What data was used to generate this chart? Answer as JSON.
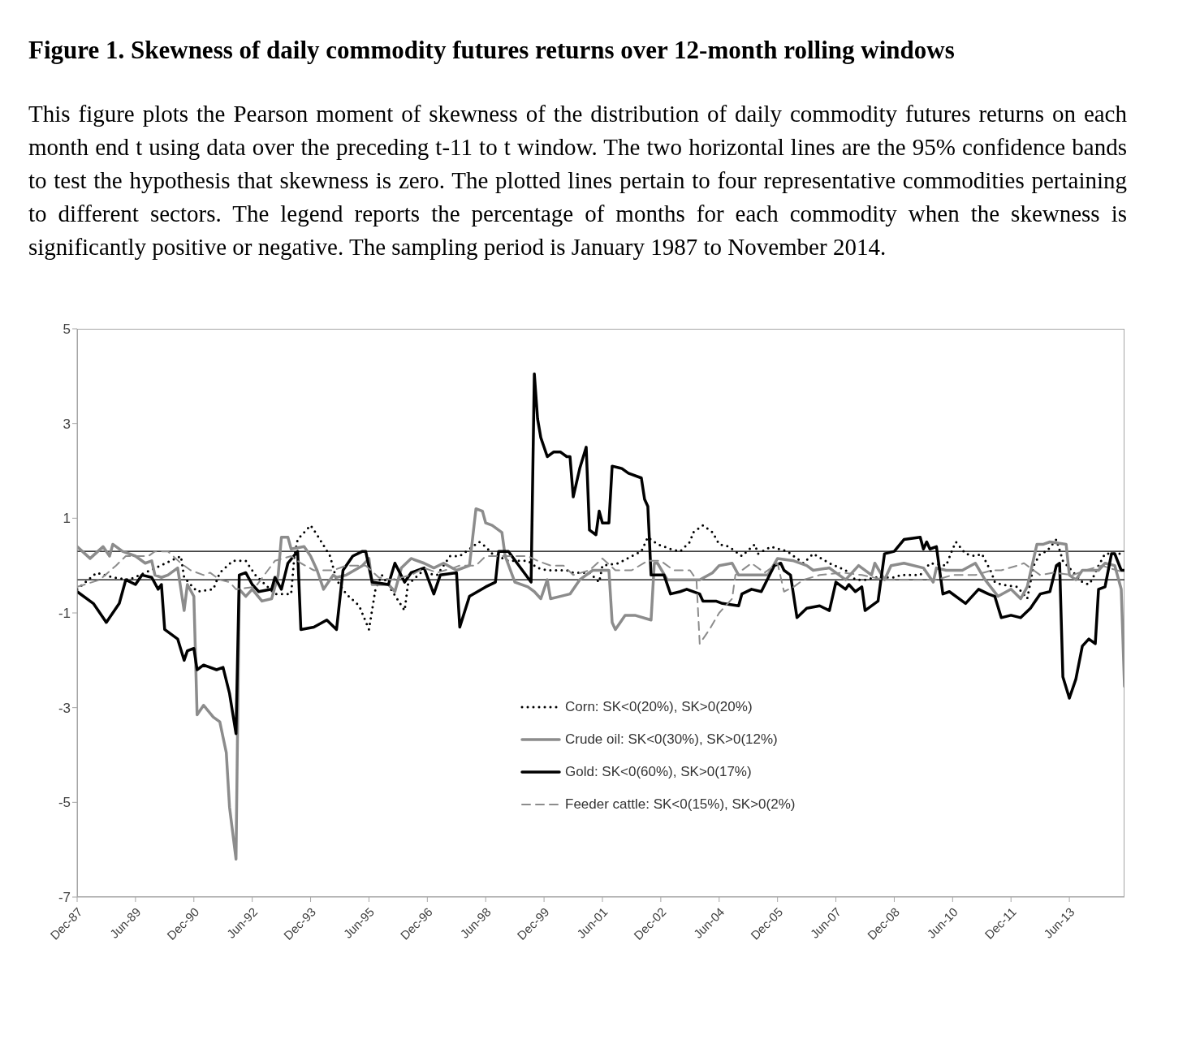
{
  "chart_data": {
    "type": "line",
    "title": "Figure 1. Skewness of daily commodity futures returns over 12-month rolling windows",
    "subtitle": "This figure plots the Pearson moment of skewness of the distribution of daily commodity futures returns on each month end t using data over the preceding t-11 to t window. The two horizontal lines are the 95% confidence bands to test the hypothesis that skewness is zero. The plotted lines pertain to four representative commodities pertaining to different sectors. The legend reports the percentage of months for each commodity when the skewness is significantly positive or negative. The sampling period is January 1987 to November 2014.",
    "xlim": [
      "1987-12",
      "2014-11"
    ],
    "xticks": [
      {
        "value": "1987-12",
        "label": "Dec-87"
      },
      {
        "value": "1989-06",
        "label": "Jun-89"
      },
      {
        "value": "1990-12",
        "label": "Dec-90"
      },
      {
        "value": "1992-06",
        "label": "Jun-92"
      },
      {
        "value": "1993-12",
        "label": "Dec-93"
      },
      {
        "value": "1995-06",
        "label": "Jun-95"
      },
      {
        "value": "1996-12",
        "label": "Dec-96"
      },
      {
        "value": "1998-06",
        "label": "Jun-98"
      },
      {
        "value": "1999-12",
        "label": "Dec-99"
      },
      {
        "value": "2001-06",
        "label": "Jun-01"
      },
      {
        "value": "2002-12",
        "label": "Dec-02"
      },
      {
        "value": "2004-06",
        "label": "Jun-04"
      },
      {
        "value": "2005-12",
        "label": "Dec-05"
      },
      {
        "value": "2007-06",
        "label": "Jun-07"
      },
      {
        "value": "2008-12",
        "label": "Dec-08"
      },
      {
        "value": "2010-06",
        "label": "Jun-10"
      },
      {
        "value": "2011-12",
        "label": "Dec-11"
      },
      {
        "value": "2013-06",
        "label": "Jun-13"
      }
    ],
    "ylim": [
      -7,
      5
    ],
    "yticks": [
      -7,
      -5,
      -3,
      -1,
      1,
      3,
      5
    ],
    "legend": "bottom",
    "ref_lines": [
      {
        "axis": "y",
        "value": 0.3,
        "color": "#000000"
      },
      {
        "axis": "y",
        "value": -0.3,
        "color": "#000000"
      }
    ],
    "series": [
      {
        "name": "Corn: SK<0(20%), SK>0(20%)",
        "color": "#000000",
        "line_style": "dotted",
        "x": [
          "1987-12",
          "1988-06",
          "1988-11",
          "1989-04",
          "1989-09",
          "1990-08",
          "1990-09",
          "1991-01",
          "1991-06",
          "1991-08",
          "1991-12",
          "1992-04",
          "1992-07",
          "1993-01",
          "1993-06",
          "1993-07",
          "1993-08",
          "1993-12",
          "1994-02",
          "1994-06",
          "1994-08",
          "1994-11",
          "1995-03",
          "1995-06",
          "1995-08",
          "1995-10",
          "1996-05",
          "1996-06",
          "1996-10",
          "1997-03",
          "1997-07",
          "1997-10",
          "1998-01",
          "1998-04",
          "1998-06",
          "1998-08",
          "1999-01",
          "1999-07",
          "1999-10",
          "2000-01",
          "2000-03",
          "2000-07",
          "2000-09",
          "2001-02",
          "2001-05",
          "2001-06",
          "2001-11",
          "2002-03",
          "2002-06",
          "2002-08",
          "2002-11",
          "2003-03",
          "2003-06",
          "2003-09",
          "2003-10",
          "2004-01",
          "2004-04",
          "2004-06",
          "2004-09",
          "2005-01",
          "2005-05",
          "2005-06",
          "2005-10",
          "2006-03",
          "2006-08",
          "2006-11",
          "2007-04",
          "2007-09",
          "2007-12",
          "2008-03",
          "2008-06",
          "2008-12",
          "2009-02",
          "2009-08",
          "2009-11",
          "2010-04",
          "2010-06",
          "2010-07",
          "2010-10",
          "2011-01",
          "2011-03",
          "2011-06",
          "2011-07",
          "2011-09",
          "2012-02",
          "2012-05",
          "2012-07",
          "2012-09",
          "2012-11",
          "2013-02",
          "2013-04",
          "2013-08",
          "2013-10",
          "2013-12",
          "2014-01",
          "2014-03",
          "2014-05",
          "2014-10"
        ],
        "values": [
          -0.5,
          -0.15,
          -0.25,
          -0.3,
          -0.15,
          0.2,
          -0.25,
          -0.55,
          -0.5,
          -0.15,
          0.1,
          0.1,
          -0.2,
          -0.6,
          -0.6,
          0.2,
          0.55,
          0.85,
          0.65,
          0.2,
          -0.3,
          -0.6,
          -0.85,
          -1.35,
          -0.5,
          -0.2,
          -0.95,
          -0.4,
          -0.15,
          -0.2,
          0.2,
          0.2,
          0.35,
          0.5,
          0.4,
          0.25,
          0.1,
          0.1,
          -0.05,
          -0.1,
          -0.1,
          -0.1,
          -0.15,
          -0.15,
          -0.35,
          0.0,
          0.05,
          0.2,
          0.3,
          0.6,
          0.45,
          0.35,
          0.3,
          0.5,
          0.7,
          0.85,
          0.7,
          0.45,
          0.4,
          0.2,
          0.45,
          0.25,
          0.4,
          0.3,
          0.05,
          0.25,
          0.05,
          -0.1,
          -0.3,
          -0.3,
          -0.25,
          -0.25,
          -0.2,
          -0.2,
          0.05,
          0.0,
          0.35,
          0.5,
          0.25,
          0.2,
          0.25,
          -0.15,
          -0.35,
          -0.4,
          -0.45,
          -0.7,
          0.0,
          0.25,
          0.3,
          0.55,
          0.1,
          -0.2,
          -0.35,
          -0.4,
          -0.3,
          0.0,
          0.25,
          0.25
        ]
      },
      {
        "name": "Crude oil: SK<0(30%), SK>0(12%)",
        "color": "#8c8c8c",
        "line_style": "solid",
        "x": [
          "1987-12",
          "1988-04",
          "1988-08",
          "1988-10",
          "1988-11",
          "1989-02",
          "1989-06",
          "1989-09",
          "1989-11",
          "1989-12",
          "1990-02",
          "1990-04",
          "1990-07",
          "1990-09",
          "1990-10",
          "1990-12",
          "1991-01",
          "1991-03",
          "1991-06",
          "1991-08",
          "1991-10",
          "1991-11",
          "1992-01",
          "1992-02",
          "1992-04",
          "1992-06",
          "1992-09",
          "1992-12",
          "1993-02",
          "1993-03",
          "1993-05",
          "1993-06",
          "1993-10",
          "1993-12",
          "1994-02",
          "1994-04",
          "1994-07",
          "1994-08",
          "1994-11",
          "1995-04",
          "1995-06",
          "1995-07",
          "1995-12",
          "1996-02",
          "1996-04",
          "1996-07",
          "1996-11",
          "1997-02",
          "1997-05",
          "1997-09",
          "1998-01",
          "1998-03",
          "1998-05",
          "1998-06",
          "1998-08",
          "1998-11",
          "1998-12",
          "1999-03",
          "1999-07",
          "1999-09",
          "1999-11",
          "2000-01",
          "2000-02",
          "2000-05",
          "2000-08",
          "2000-11",
          "2001-03",
          "2001-08",
          "2001-09",
          "2001-10",
          "2002-01",
          "2002-04",
          "2002-09",
          "2002-10",
          "2002-11",
          "2003-02",
          "2003-07",
          "2003-12",
          "2004-04",
          "2004-06",
          "2004-10",
          "2004-12",
          "2005-05",
          "2005-09",
          "2005-12",
          "2006-05",
          "2006-09",
          "2006-11",
          "2007-04",
          "2007-09",
          "2008-01",
          "2008-05",
          "2008-06",
          "2008-09",
          "2008-11",
          "2009-03",
          "2009-09",
          "2009-12",
          "2010-01",
          "2010-04",
          "2010-09",
          "2011-01",
          "2011-04",
          "2011-08",
          "2011-12",
          "2012-03",
          "2012-05",
          "2012-08",
          "2012-10",
          "2012-12",
          "2013-05",
          "2013-06",
          "2013-08",
          "2013-10",
          "2014-03",
          "2014-05",
          "2014-08",
          "2014-10",
          "2014-11"
        ],
        "values": [
          0.4,
          0.15,
          0.4,
          0.2,
          0.45,
          0.3,
          0.2,
          0.05,
          0.1,
          -0.2,
          -0.25,
          -0.2,
          -0.05,
          -0.95,
          -0.4,
          -0.65,
          -3.15,
          -2.95,
          -3.2,
          -3.3,
          -3.95,
          -5.1,
          -6.2,
          -0.5,
          -0.65,
          -0.5,
          -0.75,
          -0.7,
          -0.2,
          0.6,
          0.6,
          0.35,
          0.4,
          0.2,
          -0.1,
          -0.5,
          -0.2,
          -0.25,
          -0.2,
          0.0,
          0.15,
          -0.4,
          -0.4,
          -0.55,
          -0.05,
          0.15,
          0.05,
          -0.05,
          0.05,
          -0.1,
          0.0,
          1.2,
          1.15,
          0.9,
          0.85,
          0.7,
          0.2,
          -0.35,
          -0.45,
          -0.55,
          -0.7,
          -0.3,
          -0.7,
          -0.65,
          -0.6,
          -0.3,
          -0.1,
          -0.1,
          -1.2,
          -1.35,
          -1.05,
          -1.05,
          -1.15,
          0.05,
          0.05,
          -0.3,
          -0.3,
          -0.3,
          -0.15,
          0.0,
          0.05,
          -0.2,
          -0.2,
          -0.2,
          0.15,
          0.1,
          0.0,
          -0.1,
          -0.05,
          -0.3,
          0.0,
          -0.2,
          0.05,
          -0.3,
          0.0,
          0.05,
          -0.05,
          -0.35,
          -0.05,
          -0.1,
          -0.1,
          0.05,
          -0.3,
          -0.65,
          -0.5,
          -0.7,
          -0.45,
          0.45,
          0.45,
          0.5,
          0.45,
          -0.2,
          -0.3,
          -0.1,
          -0.1,
          0.05,
          0.0,
          -0.5,
          -2.55
        ]
      },
      {
        "name": "Gold: SK<0(60%), SK>0(17%)",
        "color": "#000000",
        "line_style": "solid",
        "x": [
          "1987-12",
          "1988-05",
          "1988-09",
          "1989-01",
          "1989-03",
          "1989-06",
          "1989-08",
          "1989-11",
          "1990-01",
          "1990-02",
          "1990-03",
          "1990-07",
          "1990-09",
          "1990-10",
          "1990-12",
          "1991-01",
          "1991-03",
          "1991-07",
          "1991-09",
          "1991-11",
          "1992-01",
          "1992-02",
          "1992-04",
          "1992-06",
          "1992-08",
          "1992-12",
          "1993-01",
          "1993-03",
          "1993-05",
          "1993-08",
          "1993-09",
          "1994-01",
          "1994-05",
          "1994-08",
          "1994-10",
          "1995-01",
          "1995-04",
          "1995-05",
          "1995-07",
          "1995-12",
          "1996-02",
          "1996-05",
          "1996-07",
          "1996-11",
          "1997-02",
          "1997-04",
          "1997-09",
          "1997-10",
          "1998-01",
          "1998-06",
          "1998-09",
          "1998-10",
          "1999-01",
          "1999-08",
          "1999-09",
          "1999-10",
          "1999-11",
          "2000-01",
          "2000-03",
          "2000-05",
          "2000-07",
          "2000-08",
          "2000-09",
          "2000-11",
          "2001-01",
          "2001-02",
          "2001-04",
          "2001-05",
          "2001-06",
          "2001-08",
          "2001-09",
          "2001-12",
          "2002-02",
          "2002-06",
          "2002-07",
          "2002-08",
          "2002-09",
          "2003-01",
          "2003-03",
          "2003-06",
          "2003-08",
          "2003-12",
          "2004-01",
          "2004-05",
          "2004-07",
          "2004-12",
          "2005-01",
          "2005-04",
          "2005-07",
          "2005-11",
          "2006-01",
          "2006-02",
          "2006-04",
          "2006-06",
          "2006-09",
          "2007-01",
          "2007-04",
          "2007-06",
          "2007-09",
          "2007-10",
          "2007-12",
          "2008-02",
          "2008-03",
          "2008-07",
          "2008-09",
          "2008-12",
          "2009-03",
          "2009-08",
          "2009-09",
          "2009-10",
          "2009-11",
          "2010-01",
          "2010-03",
          "2010-05",
          "2010-10",
          "2011-02",
          "2011-05",
          "2011-07",
          "2011-09",
          "2011-12",
          "2012-03",
          "2012-06",
          "2012-09",
          "2012-12",
          "2013-02",
          "2013-03",
          "2013-04",
          "2013-06",
          "2013-08",
          "2013-10",
          "2013-12",
          "2014-02",
          "2014-03",
          "2014-05",
          "2014-07",
          "2014-08",
          "2014-10",
          "2014-11"
        ],
        "values": [
          -0.55,
          -0.8,
          -1.2,
          -0.8,
          -0.3,
          -0.4,
          -0.2,
          -0.25,
          -0.5,
          -0.4,
          -1.35,
          -1.55,
          -2.0,
          -1.8,
          -1.75,
          -2.2,
          -2.1,
          -2.2,
          -2.15,
          -2.7,
          -3.55,
          -0.2,
          -0.15,
          -0.4,
          -0.55,
          -0.5,
          -0.25,
          -0.5,
          0.05,
          0.3,
          -1.35,
          -1.3,
          -1.15,
          -1.35,
          -0.1,
          0.2,
          0.3,
          0.3,
          -0.35,
          -0.4,
          0.05,
          -0.35,
          -0.15,
          -0.05,
          -0.6,
          -0.2,
          -0.15,
          -1.3,
          -0.65,
          -0.45,
          -0.35,
          0.3,
          0.3,
          -0.35,
          4.05,
          3.1,
          2.7,
          2.3,
          2.4,
          2.4,
          2.3,
          2.3,
          1.45,
          2.05,
          2.5,
          0.75,
          0.65,
          1.15,
          0.9,
          0.9,
          2.1,
          2.05,
          1.95,
          1.85,
          1.4,
          1.25,
          -0.2,
          -0.2,
          -0.6,
          -0.55,
          -0.5,
          -0.6,
          -0.75,
          -0.75,
          -0.8,
          -0.85,
          -0.6,
          -0.5,
          -0.55,
          0.0,
          0.05,
          -0.1,
          -0.2,
          -1.1,
          -0.9,
          -0.85,
          -0.95,
          -0.35,
          -0.5,
          -0.4,
          -0.55,
          -0.45,
          -0.95,
          -0.75,
          0.25,
          0.3,
          0.55,
          0.6,
          0.35,
          0.5,
          0.35,
          0.4,
          -0.6,
          -0.55,
          -0.8,
          -0.5,
          -0.6,
          -0.65,
          -1.1,
          -1.05,
          -1.1,
          -0.9,
          -0.6,
          -0.55,
          0.0,
          0.05,
          -2.35,
          -2.8,
          -2.4,
          -1.7,
          -1.55,
          -1.65,
          -0.5,
          -0.45,
          0.25,
          0.25,
          -0.1,
          -0.1
        ]
      },
      {
        "name": "Feeder cattle: SK<0(15%), SK>0(2%)",
        "color": "#8c8c8c",
        "line_style": "dashed",
        "x": [
          "1987-12",
          "1988-07",
          "1988-12",
          "1989-03",
          "1989-07",
          "1989-10",
          "1989-12",
          "1990-04",
          "1990-08",
          "1990-11",
          "1991-03",
          "1991-05",
          "1991-08",
          "1991-11",
          "1992-01",
          "1992-07",
          "1993-01",
          "1993-06",
          "1993-09",
          "1994-01",
          "1994-07",
          "1994-11",
          "1995-05",
          "1995-09",
          "1996-01",
          "1996-07",
          "1996-11",
          "1997-03",
          "1997-08",
          "1997-10",
          "1998-03",
          "1998-06",
          "1998-10",
          "1999-02",
          "1999-07",
          "1999-10",
          "2000-02",
          "2000-06",
          "2000-09",
          "2001-02",
          "2001-06",
          "2001-10",
          "2002-03",
          "2002-08",
          "2002-12",
          "2003-04",
          "2003-09",
          "2003-11",
          "2003-12",
          "2004-03",
          "2004-06",
          "2004-10",
          "2004-11",
          "2005-04",
          "2005-08",
          "2005-12",
          "2006-02",
          "2006-05",
          "2006-08",
          "2007-01",
          "2007-08",
          "2008-02",
          "2008-09",
          "2009-01",
          "2009-08",
          "2010-01",
          "2010-06",
          "2011-01",
          "2011-06",
          "2011-09",
          "2012-02",
          "2012-04",
          "2012-09",
          "2013-01",
          "2013-07",
          "2013-11",
          "2014-04",
          "2014-11"
        ],
        "values": [
          -0.45,
          -0.3,
          0.0,
          0.2,
          0.2,
          0.2,
          0.3,
          0.3,
          0.05,
          -0.1,
          -0.2,
          -0.15,
          -0.3,
          -0.35,
          -0.5,
          -0.45,
          0.1,
          0.2,
          0.05,
          -0.1,
          -0.1,
          0.0,
          0.0,
          -0.25,
          -0.3,
          -0.2,
          -0.05,
          -0.15,
          -0.05,
          0.0,
          0.0,
          0.2,
          0.2,
          0.2,
          0.2,
          0.1,
          0.0,
          0.0,
          -0.2,
          -0.1,
          0.15,
          -0.1,
          -0.1,
          0.1,
          0.1,
          -0.1,
          -0.1,
          -0.3,
          -1.65,
          -1.35,
          -1.0,
          -0.7,
          -0.2,
          0.05,
          -0.15,
          0.05,
          -0.55,
          -0.45,
          -0.3,
          -0.2,
          -0.15,
          -0.2,
          -0.3,
          -0.3,
          -0.3,
          -0.3,
          -0.2,
          -0.2,
          -0.1,
          -0.1,
          0.0,
          0.05,
          -0.2,
          -0.15,
          -0.2,
          -0.1,
          0.0,
          -0.15
        ]
      }
    ]
  }
}
